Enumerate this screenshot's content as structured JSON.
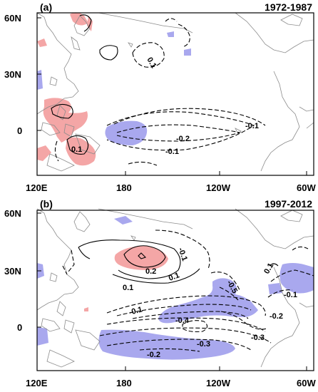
{
  "panels": [
    {
      "tag": "(a)",
      "period": "1972-1987",
      "contour_labels": [
        "0.1",
        "0.1",
        "-0.1",
        "-0.2",
        "-0.1"
      ]
    },
    {
      "tag": "(b)",
      "period": "1997-2012",
      "contour_labels": [
        "0.2",
        "0.1",
        "0.1",
        "-0.1",
        "-0.5",
        "-0.1",
        "-0.4",
        "-0.3",
        "-0.2",
        "-0.3",
        "-0.2",
        "-0.1",
        "0.1"
      ]
    }
  ],
  "axes": {
    "lat_ticks": [
      "60N",
      "30N",
      "0"
    ],
    "lon_ticks": [
      "120E",
      "180",
      "120W",
      "60W"
    ]
  },
  "colors": {
    "positive_shading": "#f4a6a6",
    "negative_shading": "#a9a8ee",
    "coastline": "#8c8c8c",
    "contour": "#000000"
  }
}
